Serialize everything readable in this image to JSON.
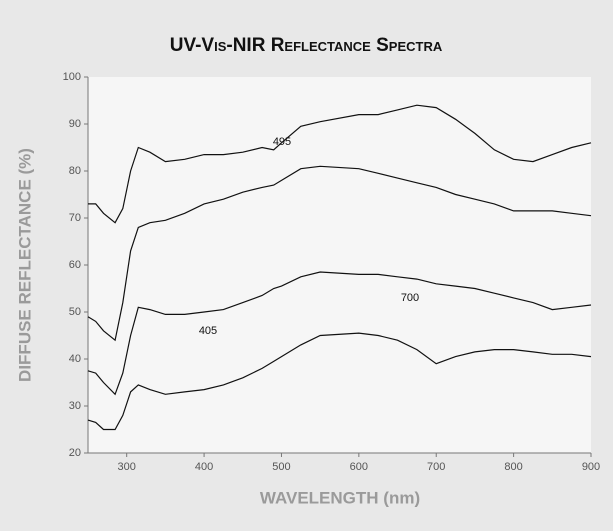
{
  "chart_data": {
    "type": "line",
    "title": "UV-Vis-NIR Reflectance Spectra",
    "xlabel": "WAVELENGTH (nm)",
    "ylabel": "DIFFUSE REFLECTANCE (%)",
    "annotations": [
      "495",
      "405",
      "700"
    ],
    "x": [
      250,
      260,
      270,
      285,
      295,
      305,
      315,
      330,
      350,
      375,
      400,
      425,
      450,
      475,
      490,
      500,
      525,
      550,
      600,
      625,
      650,
      675,
      700,
      725,
      750,
      775,
      800,
      825,
      850,
      875,
      900
    ],
    "series": [
      {
        "color": "#111111",
        "values": [
          73,
          73,
          71,
          69,
          72,
          80,
          85,
          84,
          82,
          82.5,
          83.5,
          83.5,
          84,
          85,
          84.5,
          86,
          89.5,
          90.5,
          92,
          92,
          93,
          94,
          93.5,
          91,
          88,
          84.5,
          82.5,
          82,
          83.5,
          85,
          86
        ]
      },
      {
        "color": "#111111",
        "values": [
          49,
          48,
          46,
          44,
          52,
          63,
          68,
          69,
          69.5,
          71,
          73,
          74,
          75.5,
          76.5,
          77,
          78,
          80.5,
          81,
          80.5,
          79.5,
          78.5,
          77.5,
          76.5,
          75,
          74,
          73,
          71.5,
          71.5,
          71.5,
          71,
          70.5
        ]
      },
      {
        "color": "#111111",
        "values": [
          37.5,
          37,
          35,
          32.5,
          37,
          45,
          51,
          50.5,
          49.5,
          49.5,
          50,
          50.5,
          52,
          53.5,
          55,
          55.5,
          57.5,
          58.5,
          58,
          58,
          57.5,
          57,
          56,
          55.5,
          55,
          54,
          53,
          52,
          50.5,
          51,
          51.5
        ]
      },
      {
        "color": "#111111",
        "values": [
          27,
          26.5,
          25,
          25,
          28,
          33,
          34.5,
          33.5,
          32.5,
          33,
          33.5,
          34.5,
          36,
          38,
          39.5,
          40.5,
          43,
          45,
          45.5,
          45,
          44,
          42,
          39,
          40.5,
          41.5,
          42,
          42,
          41.5,
          41,
          41,
          40.5
        ]
      }
    ],
    "xlim": [
      250,
      900
    ],
    "xticks": [
      300,
      400,
      500,
      600,
      700,
      800,
      900
    ],
    "ylim": [
      20,
      100
    ],
    "yticks": [
      20,
      30,
      40,
      50,
      60,
      70,
      80,
      90,
      100
    ]
  }
}
